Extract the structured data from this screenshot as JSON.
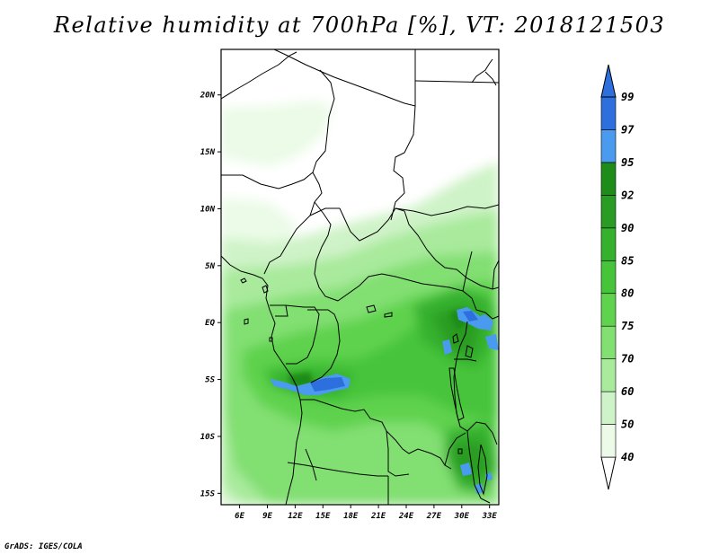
{
  "title": "Relative humidity at 700hPa [%], VT: 2018121503",
  "credit": "GrADS: IGES/COLA",
  "map": {
    "lon_range": [
      4,
      34
    ],
    "lat_range": [
      -16,
      24
    ],
    "lon_ticks": [
      {
        "v": 6,
        "label": "6E"
      },
      {
        "v": 9,
        "label": "9E"
      },
      {
        "v": 12,
        "label": "12E"
      },
      {
        "v": 15,
        "label": "15E"
      },
      {
        "v": 18,
        "label": "18E"
      },
      {
        "v": 21,
        "label": "21E"
      },
      {
        "v": 24,
        "label": "24E"
      },
      {
        "v": 27,
        "label": "27E"
      },
      {
        "v": 30,
        "label": "30E"
      },
      {
        "v": 33,
        "label": "33E"
      }
    ],
    "lat_ticks": [
      {
        "v": 20,
        "label": "20N"
      },
      {
        "v": 15,
        "label": "15N"
      },
      {
        "v": 10,
        "label": "10N"
      },
      {
        "v": 5,
        "label": "5N"
      },
      {
        "v": 0,
        "label": "EQ"
      },
      {
        "v": -5,
        "label": "5S"
      },
      {
        "v": -10,
        "label": "10S"
      },
      {
        "v": -15,
        "label": "15S"
      }
    ]
  },
  "colorbar": {
    "labels": [
      "40",
      "50",
      "60",
      "70",
      "75",
      "80",
      "85",
      "90",
      "92",
      "95",
      "97",
      "99"
    ],
    "colors": [
      "#ebfbe7",
      "#cff3c8",
      "#a9ea9c",
      "#82df72",
      "#5fd24e",
      "#46c43a",
      "#35b12d",
      "#2a9c24",
      "#1e8c19",
      "#4a9bef",
      "#2d6fdc"
    ]
  }
}
